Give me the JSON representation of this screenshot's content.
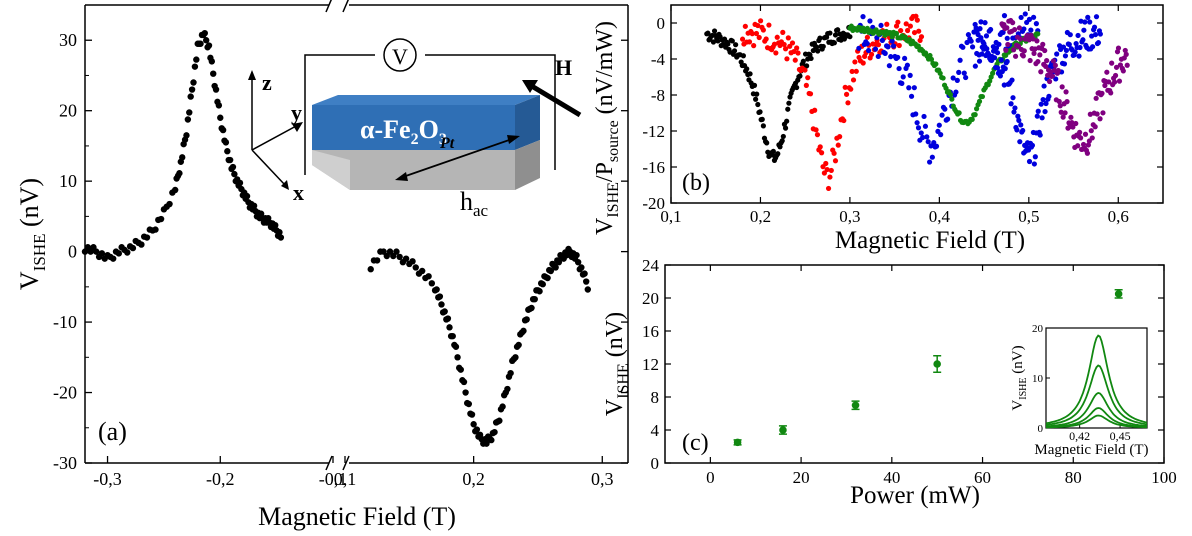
{
  "colors": {
    "black": "#000000",
    "red": "#ff0000",
    "green": "#118811",
    "blue": "#0000dd",
    "purple": "#800080",
    "dark_green": "#2e8b2e",
    "device_blue": "#2f6fb5",
    "device_grey": "#a8a8a8"
  },
  "chart_data": [
    {
      "panel": "a",
      "type": "scatter",
      "panel_label": "(a)",
      "xlabel": "Magnetic Field (T)",
      "ylabel_main": "V",
      "ylabel_sub": "ISHE",
      "ylabel_unit": " (nV)",
      "ylim": [
        -30,
        35
      ],
      "axis_break": true,
      "left_segment": {
        "xlim": [
          -0.32,
          -0.1
        ],
        "ticks": [
          {
            "v": -0.3,
            "label": "-0,3"
          },
          {
            "v": -0.2,
            "label": "-0,2"
          },
          {
            "v": -0.1,
            "label": "-0,1"
          }
        ]
      },
      "right_segment": {
        "xlim": [
          0.1,
          0.32
        ],
        "ticks": [
          {
            "v": 0.1,
            "label": "0,1"
          },
          {
            "v": 0.2,
            "label": "0,2"
          },
          {
            "v": 0.3,
            "label": "0,3"
          }
        ]
      },
      "yticks": [
        {
          "v": -30,
          "label": "-30"
        },
        {
          "v": -20,
          "label": "-20"
        },
        {
          "v": -10,
          "label": "-10"
        },
        {
          "v": 0,
          "label": "0"
        },
        {
          "v": 10,
          "label": "10"
        },
        {
          "v": 20,
          "label": "20"
        },
        {
          "v": 30,
          "label": "30"
        }
      ],
      "series": [
        {
          "segment": "left",
          "color": "black",
          "points": [
            [
              -0.32,
              0.5
            ],
            [
              -0.31,
              0
            ],
            [
              -0.3,
              -1
            ],
            [
              -0.29,
              0
            ],
            [
              -0.28,
              0.5
            ],
            [
              -0.27,
              1.5
            ],
            [
              -0.26,
              3
            ],
            [
              -0.25,
              5.5
            ],
            [
              -0.24,
              9
            ],
            [
              -0.235,
              12.5
            ],
            [
              -0.23,
              17
            ],
            [
              -0.225,
              23
            ],
            [
              -0.22,
              29
            ],
            [
              -0.215,
              31
            ],
            [
              -0.21,
              29
            ],
            [
              -0.205,
              24
            ],
            [
              -0.2,
              19
            ],
            [
              -0.195,
              15
            ],
            [
              -0.19,
              12
            ],
            [
              -0.185,
              10
            ],
            [
              -0.18,
              8.5
            ],
            [
              -0.175,
              7
            ],
            [
              -0.17,
              6
            ],
            [
              -0.165,
              5
            ],
            [
              -0.16,
              4.5
            ],
            [
              -0.155,
              4
            ],
            [
              -0.15,
              3
            ],
            [
              -0.145,
              2
            ]
          ]
        },
        {
          "segment": "right",
          "color": "black",
          "points": [
            [
              0.12,
              -2
            ],
            [
              0.13,
              0
            ],
            [
              0.14,
              -0.5
            ],
            [
              0.15,
              -1.5
            ],
            [
              0.16,
              -3
            ],
            [
              0.17,
              -5
            ],
            [
              0.175,
              -7.5
            ],
            [
              0.18,
              -10
            ],
            [
              0.185,
              -13
            ],
            [
              0.19,
              -17
            ],
            [
              0.195,
              -21
            ],
            [
              0.2,
              -24.5
            ],
            [
              0.205,
              -26.5
            ],
            [
              0.21,
              -27
            ],
            [
              0.215,
              -26
            ],
            [
              0.22,
              -23.5
            ],
            [
              0.225,
              -20
            ],
            [
              0.23,
              -16
            ],
            [
              0.235,
              -13
            ],
            [
              0.24,
              -10
            ],
            [
              0.245,
              -7.5
            ],
            [
              0.25,
              -5.5
            ],
            [
              0.255,
              -4
            ],
            [
              0.26,
              -2.5
            ],
            [
              0.265,
              -1.5
            ],
            [
              0.27,
              -0.5
            ],
            [
              0.275,
              0
            ],
            [
              0.28,
              -1
            ],
            [
              0.285,
              -3
            ],
            [
              0.29,
              -5.5
            ]
          ]
        }
      ],
      "inset_labels": {
        "z": "z",
        "y": "y",
        "x": "x",
        "V": "V",
        "H": "H",
        "material_main": "α-Fe",
        "material_sub1": "2",
        "material_mid": "O",
        "material_sub2": "3",
        "pt": "Pt",
        "hac_main": "h",
        "hac_sub": "ac"
      }
    },
    {
      "panel": "b",
      "type": "scatter",
      "panel_label": "(b)",
      "xlabel": "Magnetic Field (T)",
      "ylabel_main1": "V",
      "ylabel_sub1": "ISHE",
      "ylabel_main2": "/P",
      "ylabel_sub2": "source",
      "ylabel_unit": " (nV/mW)",
      "xlim": [
        0.1,
        0.65
      ],
      "ylim": [
        -20,
        2
      ],
      "xticks": [
        {
          "v": 0.1,
          "label": "0,1"
        },
        {
          "v": 0.2,
          "label": "0,2"
        },
        {
          "v": 0.3,
          "label": "0,3"
        },
        {
          "v": 0.4,
          "label": "0,4"
        },
        {
          "v": 0.5,
          "label": "0,5"
        },
        {
          "v": 0.6,
          "label": "0,6"
        }
      ],
      "yticks": [
        {
          "v": -20,
          "label": "-20"
        },
        {
          "v": -16,
          "label": "-16"
        },
        {
          "v": -12,
          "label": "-12"
        },
        {
          "v": -8,
          "label": "-8"
        },
        {
          "v": -4,
          "label": "-4"
        },
        {
          "v": 0,
          "label": "0"
        }
      ],
      "series": [
        {
          "color": "black",
          "center": 0.215,
          "depth": 15,
          "width": 0.022,
          "xrange": [
            0.14,
            0.3
          ],
          "spread": 0.8
        },
        {
          "color": "red",
          "center": 0.275,
          "depth": 17,
          "width": 0.02,
          "xrange": [
            0.18,
            0.38
          ],
          "spread": 1.6
        },
        {
          "color": "blue",
          "center": 0.39,
          "depth": 13.5,
          "width": 0.025,
          "xrange": [
            0.31,
            0.51
          ],
          "spread": 2.2
        },
        {
          "color": "green",
          "center": 0.43,
          "depth": 11,
          "width": 0.03,
          "xrange": [
            0.3,
            0.51
          ],
          "spread": 0.3
        },
        {
          "color": "blue",
          "center": 0.5,
          "depth": 15,
          "width": 0.02,
          "xrange": [
            0.44,
            0.58
          ],
          "spread": 2.0
        },
        {
          "color": "purple",
          "center": 0.56,
          "depth": 13,
          "width": 0.03,
          "xrange": [
            0.47,
            0.61
          ],
          "spread": 2.0
        }
      ]
    },
    {
      "panel": "c",
      "type": "scatter",
      "panel_label": "(c)",
      "xlabel": "Power (mW)",
      "ylabel_main": "V",
      "ylabel_sub": "ISHE",
      "ylabel_unit": " (nV)",
      "xlim": [
        -10,
        100
      ],
      "ylim": [
        0,
        24
      ],
      "xticks": [
        {
          "v": 0,
          "label": "0"
        },
        {
          "v": 20,
          "label": "20"
        },
        {
          "v": 40,
          "label": "40"
        },
        {
          "v": 60,
          "label": "60"
        },
        {
          "v": 80,
          "label": "80"
        },
        {
          "v": 100,
          "label": "100"
        }
      ],
      "yticks": [
        {
          "v": 0,
          "label": "0"
        },
        {
          "v": 4,
          "label": "4"
        },
        {
          "v": 8,
          "label": "8"
        },
        {
          "v": 12,
          "label": "12"
        },
        {
          "v": 16,
          "label": "16"
        },
        {
          "v": 20,
          "label": "20"
        },
        {
          "v": 24,
          "label": "24"
        }
      ],
      "points": [
        {
          "x": 6,
          "y": 2.5,
          "err": 0.3
        },
        {
          "x": 16,
          "y": 4.0,
          "err": 0.5
        },
        {
          "x": 32,
          "y": 7.0,
          "err": 0.5
        },
        {
          "x": 50,
          "y": 12.0,
          "err": 1.0
        },
        {
          "x": 90,
          "y": 20.5,
          "err": 0.5
        }
      ],
      "inset": {
        "xlabel": "Magnetic Field (T)",
        "ylabel_main": "V",
        "ylabel_sub": "ISHE",
        "ylabel_unit": " (nV)",
        "xlim": [
          0.395,
          0.47
        ],
        "ylim": [
          0,
          20
        ],
        "xticks": [
          {
            "v": 0.42,
            "label": "0,42"
          },
          {
            "v": 0.45,
            "label": "0,45"
          }
        ],
        "yticks": [
          {
            "v": 0,
            "label": "0"
          },
          {
            "v": 10,
            "label": "10"
          },
          {
            "v": 20,
            "label": "20"
          }
        ],
        "curves": [
          {
            "amp": 18.5,
            "center": 0.434,
            "width": 0.009
          },
          {
            "amp": 12.5,
            "center": 0.434,
            "width": 0.009
          },
          {
            "amp": 7.0,
            "center": 0.434,
            "width": 0.009
          },
          {
            "amp": 4.0,
            "center": 0.434,
            "width": 0.009
          },
          {
            "amp": 2.5,
            "center": 0.434,
            "width": 0.009
          }
        ]
      }
    }
  ]
}
